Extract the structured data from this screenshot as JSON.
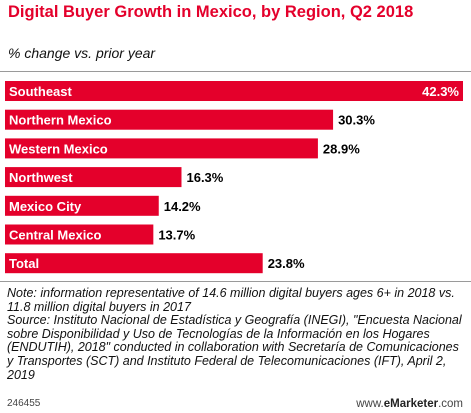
{
  "header": {
    "title": "Digital Buyer Growth in Mexico, by Region, Q2 2018",
    "subtitle": "% change vs. prior year"
  },
  "chart_data": {
    "type": "bar",
    "orientation": "horizontal",
    "categories": [
      "Southeast",
      "Northern Mexico",
      "Western Mexico",
      "Northwest",
      "Mexico City",
      "Central Mexico",
      "Total"
    ],
    "values": [
      42.3,
      30.3,
      28.9,
      16.3,
      14.2,
      13.7,
      23.8
    ],
    "value_labels": [
      "42.3%",
      "30.3%",
      "28.9%",
      "16.3%",
      "14.2%",
      "13.7%",
      "23.8%"
    ],
    "title": "Digital Buyer Growth in Mexico, by Region, Q2 2018",
    "subtitle": "% change vs. prior year",
    "xlim": [
      0,
      42.3
    ],
    "grid": false,
    "legend": "none",
    "bar_color": "#e4002b"
  },
  "footer": {
    "note": "Note: information representative of 14.6 million digital buyers ages 6+ in 2018 vs. 11.8 million digital buyers in 2017",
    "source": "Source: Instituto Nacional de Estadística y Geografía (INEGI), \"Encuesta Nacional sobre Disponibilidad y Uso de Tecnologías de la Información en los Hogares (ENDUTIH), 2018\" conducted in collaboration with Secretaría de Comunicaciones y Transportes (SCT) and Instituto Federal de Telecomunicaciones (IFT), April 2, 2019",
    "chart_id": "246455",
    "brand_prefix": "www.",
    "brand_name": "eMarketer",
    "brand_suffix": ".com"
  }
}
